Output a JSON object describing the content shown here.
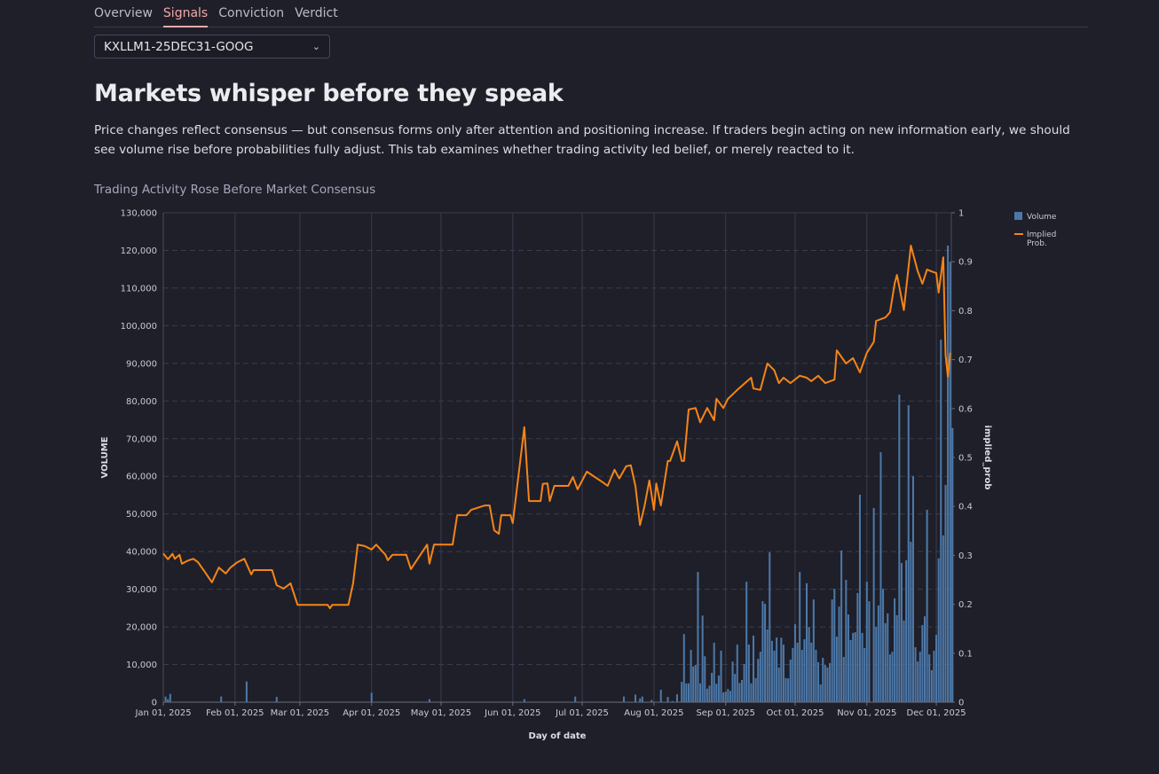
{
  "tabs": [
    {
      "label": "Overview",
      "active": false
    },
    {
      "label": "Signals",
      "active": true
    },
    {
      "label": "Conviction",
      "active": false
    },
    {
      "label": "Verdict",
      "active": false
    }
  ],
  "market_select": {
    "value": "KXLLM1-25DEC31-GOOG",
    "icon": "chevron-down-icon"
  },
  "heading": "Markets whisper before they speak",
  "description": "Price changes reflect consensus — but consensus forms only after attention and positioning increase. If traders begin acting on new information early, we should see volume rise before probabilities fully adjust. This tab examines whether trading activity led belief, or merely reacted to it.",
  "colors": {
    "volume": "#4c78a8",
    "prob": "#f58518",
    "background": "#1f1f29"
  },
  "chart_data": {
    "type": "bar+line",
    "title": "Trading Activity Rose Before Market Consensus",
    "xlabel": "Day of date",
    "ylabel": "VOLUME",
    "y2label": "implied_prob",
    "x_unit": "days since 2025-01-01",
    "xlim": [
      0,
      340.5
    ],
    "ylim": [
      0,
      130000
    ],
    "y2lim": [
      0,
      1
    ],
    "grid": true,
    "legend_position": "right",
    "legend": [
      {
        "name": "Volume",
        "kind": "bar"
      },
      {
        "name": "Implied Prob.",
        "kind": "line"
      }
    ],
    "x_ticks": [
      {
        "day": 0,
        "label": "Jan 01, 2025"
      },
      {
        "day": 31,
        "label": "Feb 01, 2025"
      },
      {
        "day": 59,
        "label": "Mar 01, 2025"
      },
      {
        "day": 90,
        "label": "Apr 01, 2025"
      },
      {
        "day": 120,
        "label": "May 01, 2025"
      },
      {
        "day": 151,
        "label": "Jun 01, 2025"
      },
      {
        "day": 181,
        "label": "Jul 01, 2025"
      },
      {
        "day": 212,
        "label": "Aug 01, 2025"
      },
      {
        "day": 243,
        "label": "Sep 01, 2025"
      },
      {
        "day": 273,
        "label": "Oct 01, 2025"
      },
      {
        "day": 304,
        "label": "Nov 01, 2025"
      },
      {
        "day": 334,
        "label": "Dec 01, 2025"
      }
    ],
    "y_ticks": [
      "0",
      "10,000",
      "20,000",
      "30,000",
      "40,000",
      "50,000",
      "60,000",
      "70,000",
      "80,000",
      "90,000",
      "100,000",
      "110,000",
      "120,000",
      "130,000"
    ],
    "y_tick_values": [
      0,
      10000,
      20000,
      30000,
      40000,
      50000,
      60000,
      70000,
      80000,
      90000,
      100000,
      110000,
      120000,
      130000
    ],
    "y2_ticks": [
      "0",
      "0.1",
      "0.2",
      "0.3",
      "0.4",
      "0.5",
      "0.6",
      "0.7",
      "0.8",
      "0.9",
      "1"
    ],
    "y2_tick_values": [
      0,
      0.1,
      0.2,
      0.3,
      0.4,
      0.5,
      0.6,
      0.7,
      0.8,
      0.9,
      1
    ],
    "volume_sparse": [
      [
        1,
        1500
      ],
      [
        2,
        800
      ],
      [
        3,
        2200
      ],
      [
        25,
        1500
      ],
      [
        36,
        5500
      ],
      [
        49,
        1400
      ],
      [
        90,
        2500
      ],
      [
        115,
        800
      ],
      [
        156,
        800
      ],
      [
        178,
        1500
      ],
      [
        199,
        1500
      ],
      [
        204,
        2000
      ],
      [
        206,
        1000
      ],
      [
        207,
        1500
      ],
      [
        211,
        600
      ],
      [
        215,
        3300
      ],
      [
        218,
        1400
      ],
      [
        220,
        300
      ],
      [
        222,
        2100
      ],
      [
        224,
        5400
      ]
    ],
    "volume_daily": {
      "start_day": 225,
      "values": [
        18100,
        5000,
        5000,
        13900,
        9500,
        9900,
        34600,
        5000,
        23000,
        12200,
        3600,
        4400,
        7800,
        15800,
        4900,
        7100,
        13700,
        2600,
        2800,
        3500,
        3000,
        10800,
        7500,
        15300,
        5100,
        5900,
        10100,
        32000,
        15300,
        5000,
        17700,
        6400,
        11500,
        13400,
        26800,
        26100,
        19300,
        39800,
        16300,
        13700,
        17200,
        9200,
        17100,
        15300,
        6400,
        6300,
        11300,
        14400,
        20700,
        15800,
        34600,
        13900,
        16700,
        31600,
        20000,
        15800,
        27300,
        13900,
        10600,
        4700,
        11800,
        9900,
        9200,
        10400,
        27300,
        30100,
        17400,
        25400,
        40300,
        12000,
        32500,
        23300,
        16500,
        18400,
        18600,
        29000,
        55100,
        18400,
        14400,
        32000,
        26800,
        0,
        51600,
        20000,
        25700,
        66400,
        30100,
        21000,
        23600,
        12700,
        13400,
        27600,
        23100,
        81700,
        37000,
        21700,
        37700,
        78900,
        42600,
        60100,
        14600,
        10800,
        13400,
        20500,
        22800,
        51100,
        12700,
        8500,
        13700,
        17900,
        38200,
        96300,
        44300,
        57700,
        121300,
        117000,
        72800
      ]
    },
    "implied_prob": [
      [
        0,
        0.304
      ],
      [
        2,
        0.292
      ],
      [
        4,
        0.303
      ],
      [
        5,
        0.293
      ],
      [
        7,
        0.301
      ],
      [
        8,
        0.283
      ],
      [
        11,
        0.29
      ],
      [
        13,
        0.293
      ],
      [
        15,
        0.286
      ],
      [
        18,
        0.266
      ],
      [
        21,
        0.245
      ],
      [
        24,
        0.275
      ],
      [
        27,
        0.263
      ],
      [
        29,
        0.275
      ],
      [
        32,
        0.286
      ],
      [
        35,
        0.293
      ],
      [
        38,
        0.261
      ],
      [
        39,
        0.27
      ],
      [
        47,
        0.27
      ],
      [
        49,
        0.239
      ],
      [
        52,
        0.232
      ],
      [
        55,
        0.243
      ],
      [
        58,
        0.199
      ],
      [
        71,
        0.199
      ],
      [
        72,
        0.192
      ],
      [
        73,
        0.199
      ],
      [
        80,
        0.199
      ],
      [
        82,
        0.243
      ],
      [
        84,
        0.322
      ],
      [
        87,
        0.319
      ],
      [
        90,
        0.312
      ],
      [
        92,
        0.322
      ],
      [
        96,
        0.301
      ],
      [
        97,
        0.29
      ],
      [
        99,
        0.301
      ],
      [
        105,
        0.301
      ],
      [
        107,
        0.272
      ],
      [
        114,
        0.322
      ],
      [
        115,
        0.283
      ],
      [
        117,
        0.322
      ],
      [
        125,
        0.322
      ],
      [
        127,
        0.382
      ],
      [
        131,
        0.382
      ],
      [
        133,
        0.393
      ],
      [
        139,
        0.402
      ],
      [
        141,
        0.402
      ],
      [
        143,
        0.351
      ],
      [
        145,
        0.344
      ],
      [
        146,
        0.382
      ],
      [
        150,
        0.382
      ],
      [
        151,
        0.366
      ],
      [
        156,
        0.562
      ],
      [
        158,
        0.411
      ],
      [
        163,
        0.411
      ],
      [
        164,
        0.446
      ],
      [
        166,
        0.447
      ],
      [
        167,
        0.411
      ],
      [
        169,
        0.442
      ],
      [
        175,
        0.442
      ],
      [
        177,
        0.46
      ],
      [
        179,
        0.435
      ],
      [
        183,
        0.471
      ],
      [
        190,
        0.449
      ],
      [
        192,
        0.442
      ],
      [
        195,
        0.475
      ],
      [
        197,
        0.457
      ],
      [
        200,
        0.482
      ],
      [
        202,
        0.484
      ],
      [
        204,
        0.442
      ],
      [
        206,
        0.362
      ],
      [
        208,
        0.402
      ],
      [
        210,
        0.453
      ],
      [
        212,
        0.393
      ],
      [
        213,
        0.447
      ],
      [
        215,
        0.402
      ],
      [
        218,
        0.493
      ],
      [
        219,
        0.493
      ],
      [
        222,
        0.533
      ],
      [
        224,
        0.493
      ],
      [
        225,
        0.493
      ],
      [
        227,
        0.598
      ],
      [
        230,
        0.601
      ],
      [
        232,
        0.572
      ],
      [
        235,
        0.601
      ],
      [
        238,
        0.576
      ],
      [
        239,
        0.62
      ],
      [
        242,
        0.601
      ],
      [
        244,
        0.62
      ],
      [
        248,
        0.638
      ],
      [
        254,
        0.663
      ],
      [
        255,
        0.641
      ],
      [
        258,
        0.638
      ],
      [
        261,
        0.692
      ],
      [
        264,
        0.678
      ],
      [
        266,
        0.652
      ],
      [
        268,
        0.663
      ],
      [
        271,
        0.652
      ],
      [
        275,
        0.667
      ],
      [
        278,
        0.663
      ],
      [
        280,
        0.656
      ],
      [
        283,
        0.667
      ],
      [
        286,
        0.652
      ],
      [
        290,
        0.659
      ],
      [
        291,
        0.719
      ],
      [
        295,
        0.692
      ],
      [
        298,
        0.703
      ],
      [
        301,
        0.674
      ],
      [
        304,
        0.714
      ],
      [
        307,
        0.736
      ],
      [
        308,
        0.779
      ],
      [
        312,
        0.786
      ],
      [
        314,
        0.797
      ],
      [
        316,
        0.855
      ],
      [
        317,
        0.873
      ],
      [
        320,
        0.801
      ],
      [
        323,
        0.933
      ],
      [
        326,
        0.88
      ],
      [
        328,
        0.855
      ],
      [
        330,
        0.884
      ],
      [
        332,
        0.88
      ],
      [
        334,
        0.877
      ],
      [
        335,
        0.837
      ],
      [
        337,
        0.909
      ],
      [
        338,
        0.71
      ],
      [
        339,
        0.665
      ],
      [
        340,
        0.714
      ]
    ]
  }
}
